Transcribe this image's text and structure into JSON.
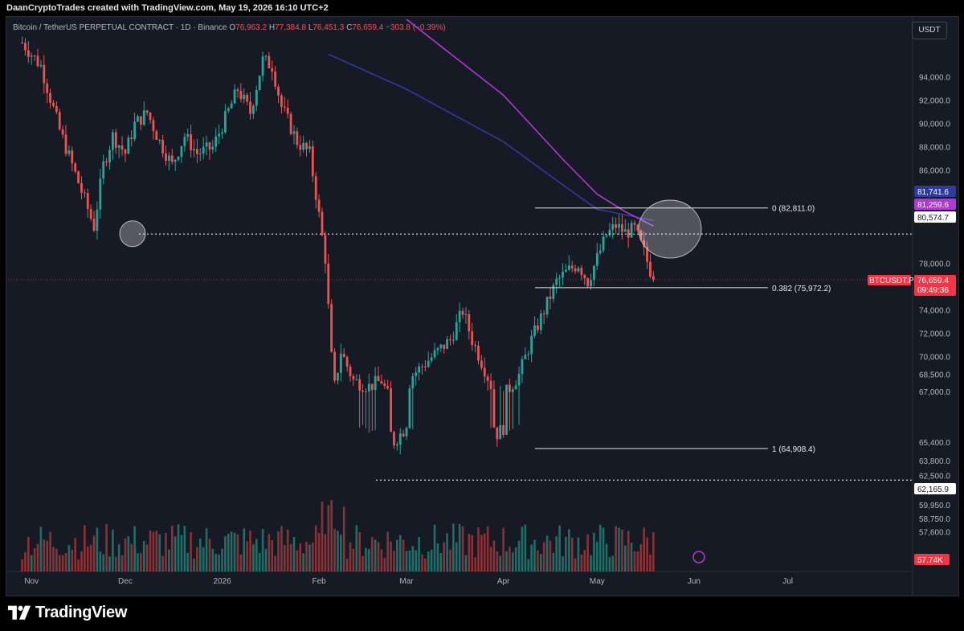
{
  "header": {
    "attribution": "DaanCryptoTrades created with TradingView.com, May 19, 2026 16:10 UTC+2"
  },
  "legend": {
    "symbol": "Bitcoin / TetherUS PERPETUAL CONTRACT · 1D · Binance",
    "open_label": "O",
    "open": "76,963.2",
    "high_label": "H",
    "high": "77,384.8",
    "low_label": "L",
    "low": "76,451.3",
    "close_label": "C",
    "close": "76,659.4",
    "change": "−303.8 (−0.39%)"
  },
  "currency_button": "USDT",
  "colors": {
    "up": "#26a69a",
    "down": "#ef5350",
    "ma_fast": "#2e3a9e",
    "ma_slow": "#b03ad1",
    "background": "#161a25",
    "price_tag": "#f23645"
  },
  "footer": {
    "brand": "TradingView"
  },
  "chart_data": {
    "type": "candlestick",
    "symbol": "BTCUSDT.P",
    "price_axis_ticks": [
      "94,000.0",
      "92,000.0",
      "90,000.0",
      "88,000.0",
      "86,000.0",
      "84,000.0",
      "78,000.0",
      "74,000.0",
      "72,000.0",
      "70,000.0",
      "68,500.0",
      "67,000.0",
      "65,400.0",
      "63,800.0",
      "62,500.0",
      "61,150.0",
      "59,950.0",
      "58,750.0",
      "57,600.0"
    ],
    "time_axis_ticks": [
      "Nov",
      "Dec",
      "2026",
      "Feb",
      "Mar",
      "Apr",
      "May",
      "Jun",
      "Jul"
    ],
    "current_price": {
      "label": "BTCUSDT.P",
      "value": "76,659.4",
      "countdown": "09:49:36"
    },
    "price_tags": [
      {
        "value": "81,741.6",
        "color": "#2e3a9e"
      },
      {
        "value": "81,259.6",
        "color": "#b03ad1"
      },
      {
        "value": "80,574.7",
        "color": "#ffffff"
      },
      {
        "value": "62,165.9",
        "color": "#ffffff"
      }
    ],
    "volume_tag": "57.74K",
    "fibonacci": [
      {
        "level": "0",
        "price": 82811.0,
        "label": "0 (82,811.0)"
      },
      {
        "level": "0.382",
        "price": 75972.2,
        "label": "0.382 (75,972.2)"
      },
      {
        "level": "1",
        "price": 64908.4,
        "label": "1 (64,908.4)"
      }
    ],
    "horizontal_levels": [
      80574.7,
      62165.9
    ],
    "highlight_circles": [
      {
        "date": "Nov 21, 2025",
        "price": 80600
      },
      {
        "date": "May 9, 2026",
        "price": 81000
      }
    ],
    "moving_averages": [
      {
        "color": "#2e3a9e",
        "points": [
          [
            "2026-02-04",
            96000
          ],
          [
            "2026-03-01",
            93000
          ],
          [
            "2026-04-01",
            88500
          ],
          [
            "2026-04-20",
            84800
          ],
          [
            "2026-05-01",
            82700
          ],
          [
            "2026-05-19",
            81741.6
          ]
        ]
      },
      {
        "color": "#b03ad1",
        "points": [
          [
            "2026-03-01",
            99000
          ],
          [
            "2026-04-01",
            92500
          ],
          [
            "2026-04-20",
            87000
          ],
          [
            "2026-05-01",
            84000
          ],
          [
            "2026-05-10",
            82500
          ],
          [
            "2026-05-19",
            81259.6
          ]
        ]
      }
    ],
    "price_path": [
      [
        "2025-10-29",
        97000
      ],
      [
        "2025-11-04",
        95000
      ],
      [
        "2025-11-10",
        89500
      ],
      [
        "2025-11-14",
        86500
      ],
      [
        "2025-11-18",
        83500
      ],
      [
        "2025-11-21",
        81200
      ],
      [
        "2025-11-24",
        86500
      ],
      [
        "2025-11-27",
        89000
      ],
      [
        "2025-12-01",
        87500
      ],
      [
        "2025-12-04",
        90000
      ],
      [
        "2025-12-08",
        91000
      ],
      [
        "2025-12-12",
        88500
      ],
      [
        "2025-12-16",
        86500
      ],
      [
        "2025-12-20",
        89000
      ],
      [
        "2025-12-24",
        87500
      ],
      [
        "2025-12-29",
        88000
      ],
      [
        "2026-01-02",
        90500
      ],
      [
        "2026-01-06",
        93000
      ],
      [
        "2026-01-10",
        91000
      ],
      [
        "2026-01-14",
        95500
      ],
      [
        "2026-01-17",
        95000
      ],
      [
        "2026-01-20",
        91500
      ],
      [
        "2026-01-25",
        88500
      ],
      [
        "2026-01-29",
        87500
      ],
      [
        "2026-01-31",
        84000
      ],
      [
        "2026-02-03",
        78500
      ],
      [
        "2026-02-05",
        70000
      ],
      [
        "2026-02-06",
        67500
      ],
      [
        "2026-02-08",
        70500
      ],
      [
        "2026-02-12",
        68000
      ],
      [
        "2026-02-17",
        67500
      ],
      [
        "2026-02-21",
        68000
      ],
      [
        "2026-02-25",
        65500
      ],
      [
        "2026-02-28",
        66500
      ],
      [
        "2026-03-03",
        68500
      ],
      [
        "2026-03-07",
        69500
      ],
      [
        "2026-03-11",
        70500
      ],
      [
        "2026-03-15",
        71500
      ],
      [
        "2026-03-19",
        74000
      ],
      [
        "2026-03-22",
        71500
      ],
      [
        "2026-03-26",
        69000
      ],
      [
        "2026-03-30",
        66200
      ],
      [
        "2026-04-02",
        67000
      ],
      [
        "2026-04-06",
        68500
      ],
      [
        "2026-04-10",
        71500
      ],
      [
        "2026-04-14",
        74000
      ],
      [
        "2026-04-18",
        76500
      ],
      [
        "2026-04-22",
        77500
      ],
      [
        "2026-04-25",
        78000
      ],
      [
        "2026-04-28",
        76500
      ],
      [
        "2026-05-01",
        78500
      ],
      [
        "2026-05-04",
        80500
      ],
      [
        "2026-05-07",
        81300
      ],
      [
        "2026-05-10",
        80700
      ],
      [
        "2026-05-13",
        81000
      ],
      [
        "2026-05-16",
        79000
      ],
      [
        "2026-05-19",
        76659.4
      ]
    ]
  }
}
